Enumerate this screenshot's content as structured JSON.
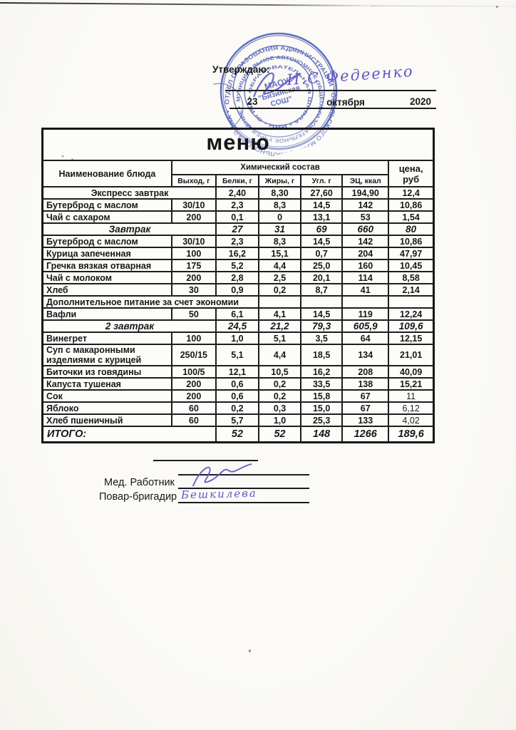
{
  "colors": {
    "stamp_blue": "#4355b8",
    "hand_blue": "#5f56c6",
    "ink": "#171717"
  },
  "approve": {
    "label": "Утверждаю:",
    "signature": "И.С Федеенко",
    "date_day": "23",
    "date_month": "октября",
    "date_year": "2020"
  },
  "stamp": {
    "ring_outer": "ОТДЕЛ ОБРАЗОВАНИЯ АДМИНИСТРАЦИИ ТОБОЛЬСКОГО МУНИЦИПАЛЬНОГО РАЙОНА •",
    "ring_middle": "МУНИЦИПАЛЬНОЕ АВТОНОМНОЕ ОБЩЕОБРАЗОВАТЕЛЬНОЕ УЧРЕЖДЕНИЕ •",
    "ring_inner": "• ОБРАЗОВАТЕЛЬНАЯ ШКОЛА • ИНН • ОГРН",
    "center_line1": "МАОУ",
    "center_line2": "\"Бизинская",
    "center_line3": "СОШ\""
  },
  "menu": {
    "title": "меню",
    "header": {
      "name": "Наименование блюда",
      "chem": "Химический состав",
      "price": "цена, руб",
      "sub": [
        "Выход, г",
        "Белки, г",
        "Жиры, г",
        "Угл. г",
        "ЭЦ, ккал"
      ]
    },
    "rows": [
      {
        "style": "merged",
        "name": "Экспресс завтрак",
        "vals": [
          "2,40",
          "8,30",
          "27,60",
          "194,90"
        ],
        "price": "12,4"
      },
      {
        "style": "normal",
        "name": "Бутерброд с маслом",
        "out": "30/10",
        "vals": [
          "2,3",
          "8,3",
          "14,5",
          "142"
        ],
        "price": "10,86"
      },
      {
        "style": "normal",
        "name": "Чай с сахаром",
        "out": "200",
        "vals": [
          "0,1",
          "0",
          "13,1",
          "53"
        ],
        "price": "1,54"
      },
      {
        "style": "subtotal",
        "name": "Завтрак",
        "vals": [
          "27",
          "31",
          "69",
          "660"
        ],
        "price": "80"
      },
      {
        "style": "normal",
        "name": "Бутерброд с маслом",
        "out": "30/10",
        "vals": [
          "2,3",
          "8,3",
          "14,5",
          "142"
        ],
        "price": "10,86"
      },
      {
        "style": "normal",
        "name": "Курица запеченная",
        "out": "100",
        "vals": [
          "16,2",
          "15,1",
          "0,7",
          "204"
        ],
        "price": "47,97"
      },
      {
        "style": "normal",
        "name": "Гречка вязкая отварная",
        "out": "175",
        "vals": [
          "5,2",
          "4,4",
          "25,0",
          "160"
        ],
        "price": "10,45"
      },
      {
        "style": "normal",
        "name": "Чай с молоком",
        "out": "200",
        "vals": [
          "2,8",
          "2,5",
          "20,1",
          "114"
        ],
        "price": "8,58"
      },
      {
        "style": "normal",
        "name": "Хлеб",
        "out": "30",
        "vals": [
          "0,9",
          "0,2",
          "8,7",
          "41"
        ],
        "price": "2,14"
      },
      {
        "style": "note",
        "name": "Дополнительное питание за счет экономии"
      },
      {
        "style": "normal",
        "name": "Вафли",
        "out": "50",
        "vals": [
          "6,1",
          "4,1",
          "14,5",
          "119"
        ],
        "price": "12,24"
      },
      {
        "style": "subtotal",
        "name": "2 завтрак",
        "vals": [
          "24,5",
          "21,2",
          "79,3",
          "605,9"
        ],
        "price": "109,6"
      },
      {
        "style": "normal",
        "name": "Винегрет",
        "out": "100",
        "vals": [
          "1,0",
          "5,1",
          "3,5",
          "64"
        ],
        "price": "12,15"
      },
      {
        "style": "normal",
        "name": "Суп  с макаронными изделиями с курицей",
        "out": "250/15",
        "vals": [
          "5,1",
          "4,4",
          "18,5",
          "134"
        ],
        "price": "21,01"
      },
      {
        "style": "normal",
        "name": "Биточки из говядины",
        "out": "100/5",
        "vals": [
          "12,1",
          "10,5",
          "16,2",
          "208"
        ],
        "price": "40,09"
      },
      {
        "style": "normal",
        "name": "Капуста тушеная",
        "out": "200",
        "vals": [
          "0,6",
          "0,2",
          "33,5",
          "138"
        ],
        "price": "15,21"
      },
      {
        "style": "normal",
        "name": "Сок",
        "out": "200",
        "vals": [
          "0,6",
          "0,2",
          "15,8",
          "67"
        ],
        "price": "11",
        "price_light": true
      },
      {
        "style": "normal",
        "name": "Яблоко",
        "out": "60",
        "vals": [
          "0,2",
          "0,3",
          "15,0",
          "67"
        ],
        "price": "6,12",
        "price_light": true
      },
      {
        "style": "normal",
        "name": "Хлеб пшеничный",
        "out": "60",
        "vals": [
          "5,7",
          "1,0",
          "25,3",
          "133"
        ],
        "price": "4,02",
        "price_light": true
      },
      {
        "style": "total",
        "name": "ИТОГО:",
        "vals": [
          "52",
          "52",
          "148",
          "1266"
        ],
        "price": "189,6"
      }
    ]
  },
  "footer": {
    "med_label": "Мед. Работник",
    "cook_label": "Повар-бригадир",
    "cook_signature": "Бешкилева"
  }
}
